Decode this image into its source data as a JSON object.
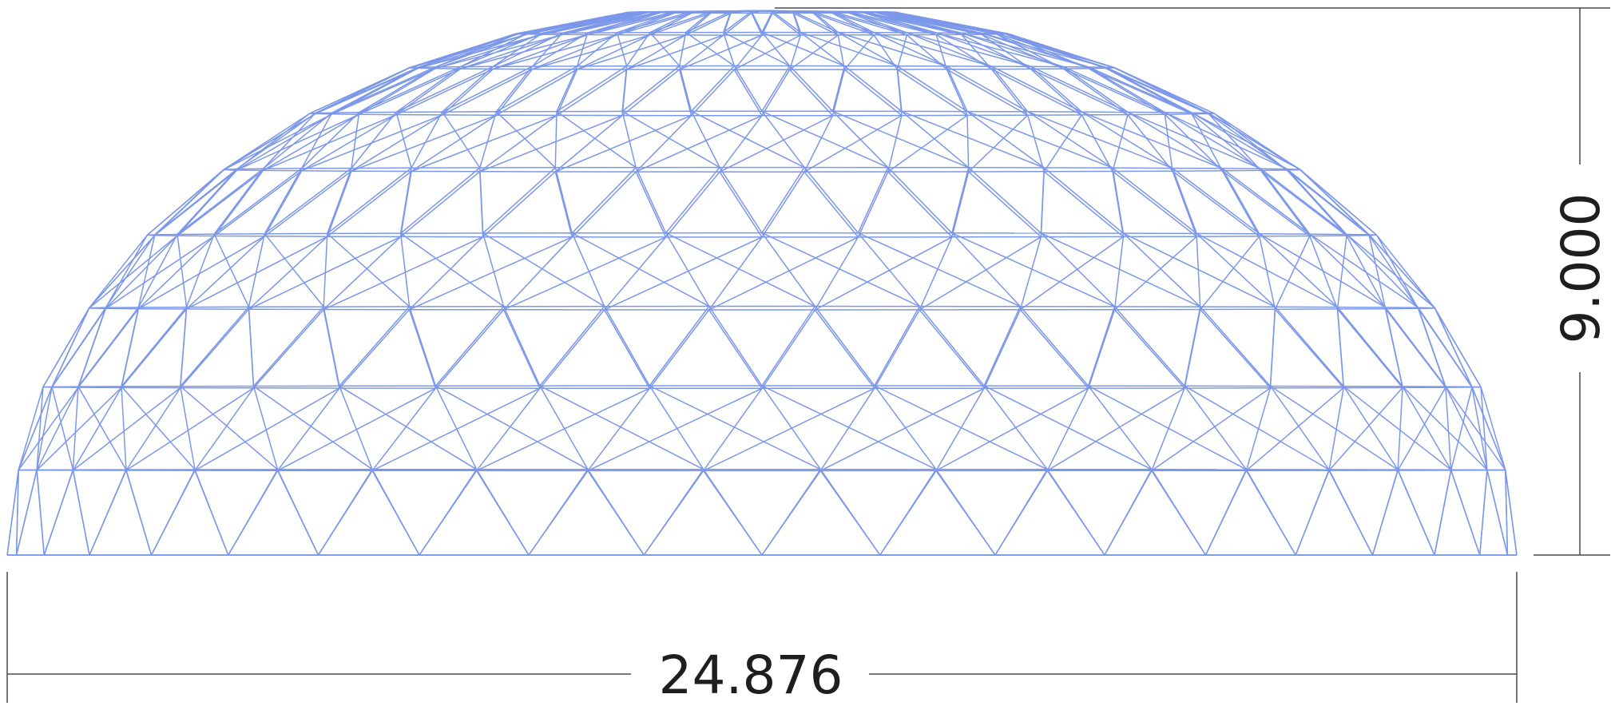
{
  "drawing": {
    "width_dimension": "24.876",
    "height_dimension": "9.000",
    "dome": {
      "frequency": 10,
      "rings": 9,
      "segments": 20
    },
    "colors": {
      "mesh": "#7b97ea",
      "dimension_line": "#4a4a4a",
      "dimension_text": "#1e1e1e"
    }
  }
}
